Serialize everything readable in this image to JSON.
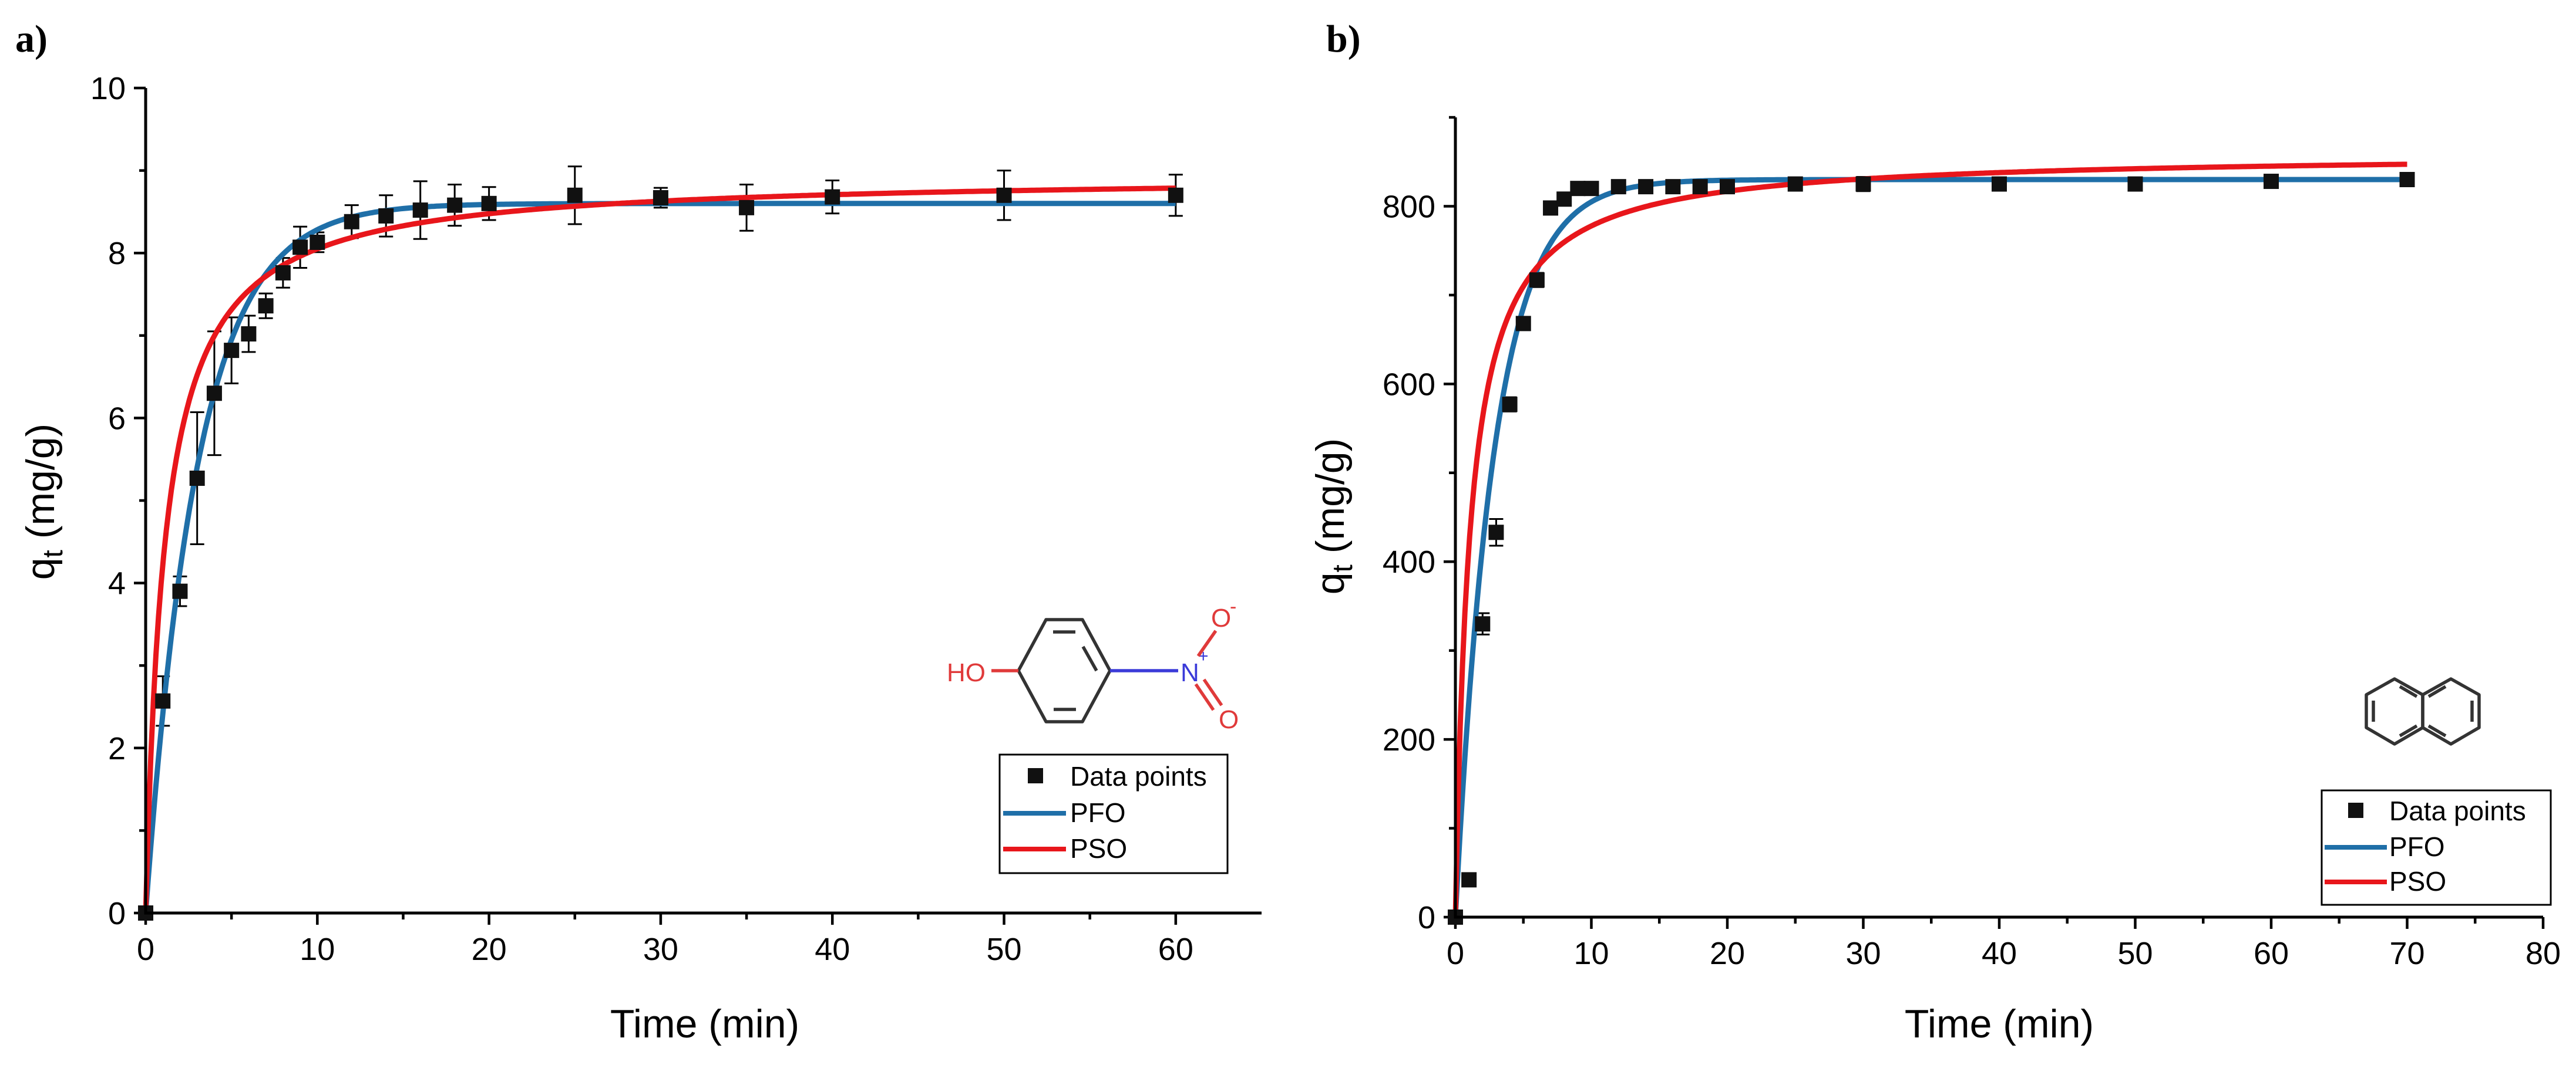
{
  "chart_data": [
    {
      "type": "scatter",
      "panel_label": "a)",
      "title": "",
      "xlabel": "Time (min)",
      "ylabel_main": "q",
      "ylabel_sub": "t",
      "ylabel_unit": " (mg/g)",
      "xlim": [
        0,
        65
      ],
      "ylim": [
        0,
        10
      ],
      "xticks": [
        0,
        10,
        20,
        30,
        40,
        50,
        60
      ],
      "yticks": [
        0,
        2,
        4,
        6,
        8,
        10
      ],
      "legend": {
        "position": "bottom-right",
        "entries": [
          "Data points",
          "PFO",
          "PSO"
        ]
      },
      "series": [
        {
          "name": "Data points",
          "kind": "markers",
          "color": "#111111",
          "x": [
            0,
            1,
            2,
            3,
            4,
            5,
            6,
            7,
            8,
            9,
            10,
            12,
            14,
            16,
            18,
            20,
            25,
            30,
            35,
            40,
            50,
            60
          ],
          "y": [
            0,
            2.57,
            3.9,
            5.27,
            6.3,
            6.82,
            7.02,
            7.36,
            7.76,
            8.07,
            8.13,
            8.38,
            8.45,
            8.52,
            8.58,
            8.6,
            8.7,
            8.67,
            8.55,
            8.68,
            8.7,
            8.7
          ],
          "err": [
            0,
            0.3,
            0.18,
            0.8,
            0.75,
            0.4,
            0.22,
            0.15,
            0.18,
            0.25,
            0.12,
            0.2,
            0.25,
            0.35,
            0.25,
            0.2,
            0.35,
            0.12,
            0.28,
            0.2,
            0.3,
            0.25
          ]
        },
        {
          "name": "PFO",
          "kind": "line",
          "color": "#1f6fa8",
          "model": "pfo",
          "qe": 8.6,
          "k": 0.33
        },
        {
          "name": "PSO",
          "kind": "line",
          "color": "#e8161b",
          "model": "pso",
          "qe": 8.95,
          "k": 0.1
        }
      ],
      "inset": "4-nitrophenol",
      "inset_labels": {
        "hydroxyl": "HO",
        "nitrogen": "N",
        "charge_plus": "+",
        "oxygen_top": "O",
        "charge_minus": "-",
        "oxygen_bottom": "O"
      }
    },
    {
      "type": "scatter",
      "panel_label": "b)",
      "title": "",
      "xlabel": "Time (min)",
      "ylabel_main": "q",
      "ylabel_sub": "t",
      "ylabel_unit": " (mg/g)",
      "xlim": [
        0,
        80
      ],
      "ylim": [
        0,
        900
      ],
      "xticks": [
        0,
        10,
        20,
        30,
        40,
        50,
        60,
        70,
        80
      ],
      "yticks": [
        0,
        200,
        400,
        600,
        800
      ],
      "legend": {
        "position": "bottom-right",
        "entries": [
          "Data points",
          "PFO",
          "PSO"
        ]
      },
      "series": [
        {
          "name": "Data points",
          "kind": "markers",
          "color": "#111111",
          "x": [
            0,
            1,
            2,
            3,
            4,
            5,
            6,
            7,
            8,
            9,
            10,
            12,
            14,
            16,
            18,
            20,
            25,
            30,
            40,
            50,
            60,
            70
          ],
          "y": [
            0,
            42,
            330,
            433,
            577,
            668,
            717,
            798,
            808,
            820,
            820,
            822,
            822,
            822,
            822,
            822,
            825,
            825,
            825,
            825,
            828,
            830
          ],
          "err": [
            0,
            0,
            12,
            15,
            8,
            6,
            8,
            6,
            6,
            6,
            6,
            5,
            5,
            6,
            6,
            6,
            6,
            8,
            6,
            6,
            6,
            5
          ]
        },
        {
          "name": "PFO",
          "kind": "line",
          "color": "#1f6fa8",
          "model": "pfo",
          "qe": 830,
          "k": 0.35
        },
        {
          "name": "PSO",
          "kind": "line",
          "color": "#e8161b",
          "model": "pso",
          "qe": 860,
          "k": 0.0011
        }
      ],
      "inset": "naphthalene"
    }
  ]
}
